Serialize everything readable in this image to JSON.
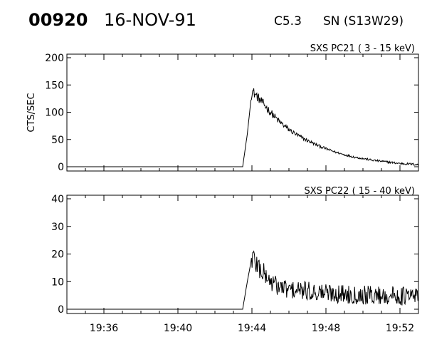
{
  "header": {
    "event_id": "00920",
    "date": "16-NOV-91",
    "flare_class": "C5.3",
    "location": "SN (S13W29)"
  },
  "chart_data": [
    {
      "type": "line",
      "title": "SXS PC21  (  3 - 15 keV)",
      "ylabel": "CTS/SEC",
      "xlabel": "",
      "ylim": [
        0,
        200
      ],
      "yticks": [
        "0",
        "50",
        "100",
        "150",
        "200"
      ],
      "yticks_values": [
        0,
        50,
        100,
        150,
        200
      ],
      "xlim": [
        "19:34",
        "19:53"
      ],
      "grid": false,
      "series": [
        {
          "x": [
            "19:34:00",
            "19:36:00",
            "19:38:00",
            "19:40:00",
            "19:42:00",
            "19:43:30",
            "19:43:45",
            "19:44:00",
            "19:44:30",
            "19:45:00",
            "19:45:30",
            "19:46:00",
            "19:46:30",
            "19:47:00",
            "19:47:30",
            "19:48:00",
            "19:48:30",
            "19:49:00",
            "19:49:30",
            "19:50:00",
            "19:50:30",
            "19:51:00",
            "19:51:30",
            "19:52:00",
            "19:52:30",
            "19:53:00"
          ],
          "y": [
            0,
            0,
            0,
            0,
            0,
            0,
            60,
            140,
            120,
            100,
            82,
            68,
            57,
            48,
            40,
            33,
            27,
            22,
            18,
            15,
            12,
            10,
            8,
            6,
            5,
            4
          ]
        }
      ]
    },
    {
      "type": "line",
      "title": "SXS PC22  ( 15 - 40 keV)",
      "ylabel": "",
      "xlabel": "",
      "ylim": [
        0,
        40
      ],
      "yticks": [
        "0",
        "10",
        "20",
        "30",
        "40"
      ],
      "yticks_values": [
        0,
        10,
        20,
        30,
        40
      ],
      "xlim": [
        "19:34",
        "19:53"
      ],
      "xticks": [
        "19:36",
        "19:40",
        "19:44",
        "19:48",
        "19:52"
      ],
      "grid": false,
      "series": [
        {
          "x": [
            "19:34:00",
            "19:36:00",
            "19:38:00",
            "19:40:00",
            "19:42:00",
            "19:43:30",
            "19:43:45",
            "19:44:00",
            "19:44:30",
            "19:45:00",
            "19:45:30",
            "19:46:00",
            "19:47:00",
            "19:48:00",
            "19:49:00",
            "19:50:00",
            "19:51:00",
            "19:52:00",
            "19:53:00"
          ],
          "y": [
            0,
            0,
            0,
            0,
            0,
            0,
            10,
            19,
            14,
            10,
            8,
            7,
            6.5,
            6,
            5.5,
            5.2,
            5,
            4.8,
            4.6
          ]
        }
      ]
    }
  ]
}
